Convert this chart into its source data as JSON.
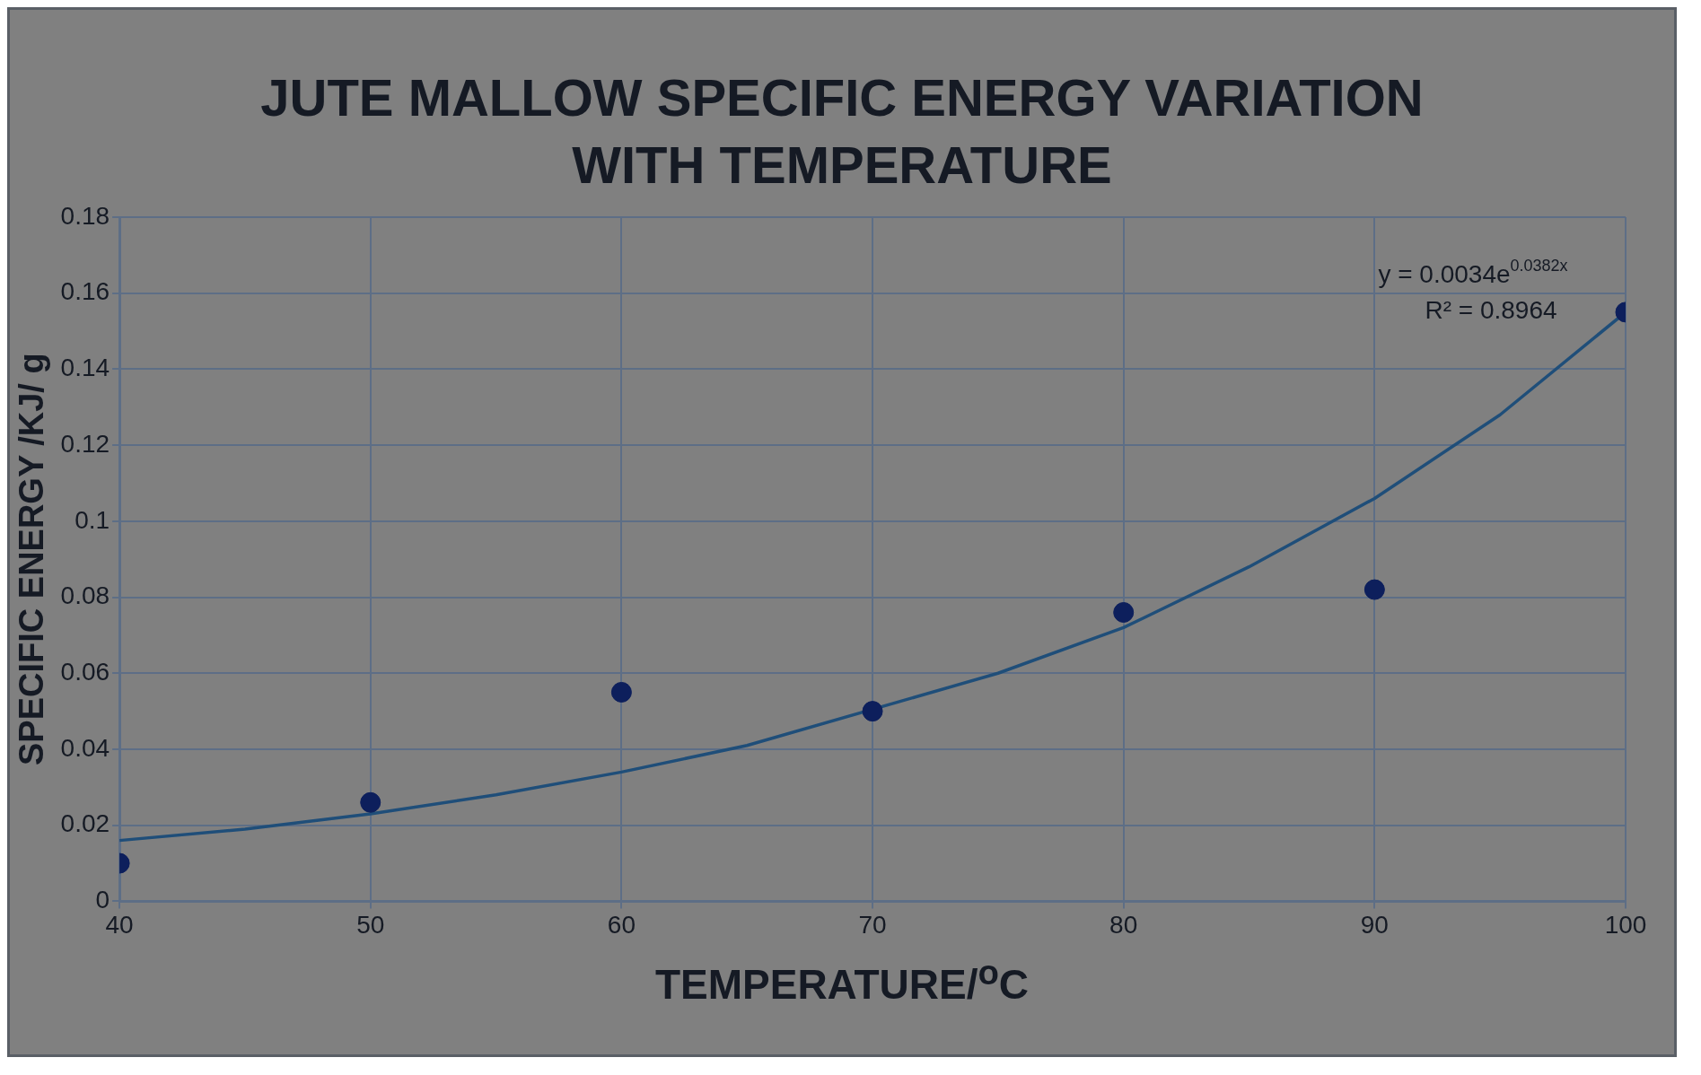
{
  "chart_data": {
    "type": "scatter",
    "title": "JUTE MALLOW SPECIFIC ENERGY VARIATION WITH TEMPERATURE",
    "xlabel": "TEMPERATURE/$^{o}$C",
    "ylabel": "SPECIFIC ENERGY /KJ/ g",
    "xlim": [
      40,
      100
    ],
    "xticks": [
      40,
      50,
      60,
      70,
      80,
      90,
      100
    ],
    "ylim": [
      0,
      0.18
    ],
    "yticks": [
      0,
      0.02,
      0.04,
      0.06,
      0.08,
      0.1,
      0.12,
      0.14,
      0.16,
      0.18
    ],
    "grid": true,
    "legend": false,
    "series": [
      {
        "color": "#0d1f5c",
        "marker": "circle",
        "x": [
          40,
          50,
          60,
          70,
          80,
          90,
          100
        ],
        "values": [
          0.01,
          0.026,
          0.055,
          0.05,
          0.076,
          0.082,
          0.155
        ]
      },
      {
        "type": "line",
        "color": "#1f4e79",
        "marker": "none",
        "x": [
          40,
          45,
          50,
          55,
          60,
          65,
          75,
          80,
          85,
          90,
          95,
          100
        ],
        "values": [
          0.016,
          0.019,
          0.023,
          0.028,
          0.034,
          0.041,
          0.06,
          0.072,
          0.088,
          0.106,
          0.128,
          0.155
        ]
      }
    ],
    "annotations": [
      "y = 0.0034e$^{0.0382x}$",
      "R² = 0.8964"
    ]
  }
}
